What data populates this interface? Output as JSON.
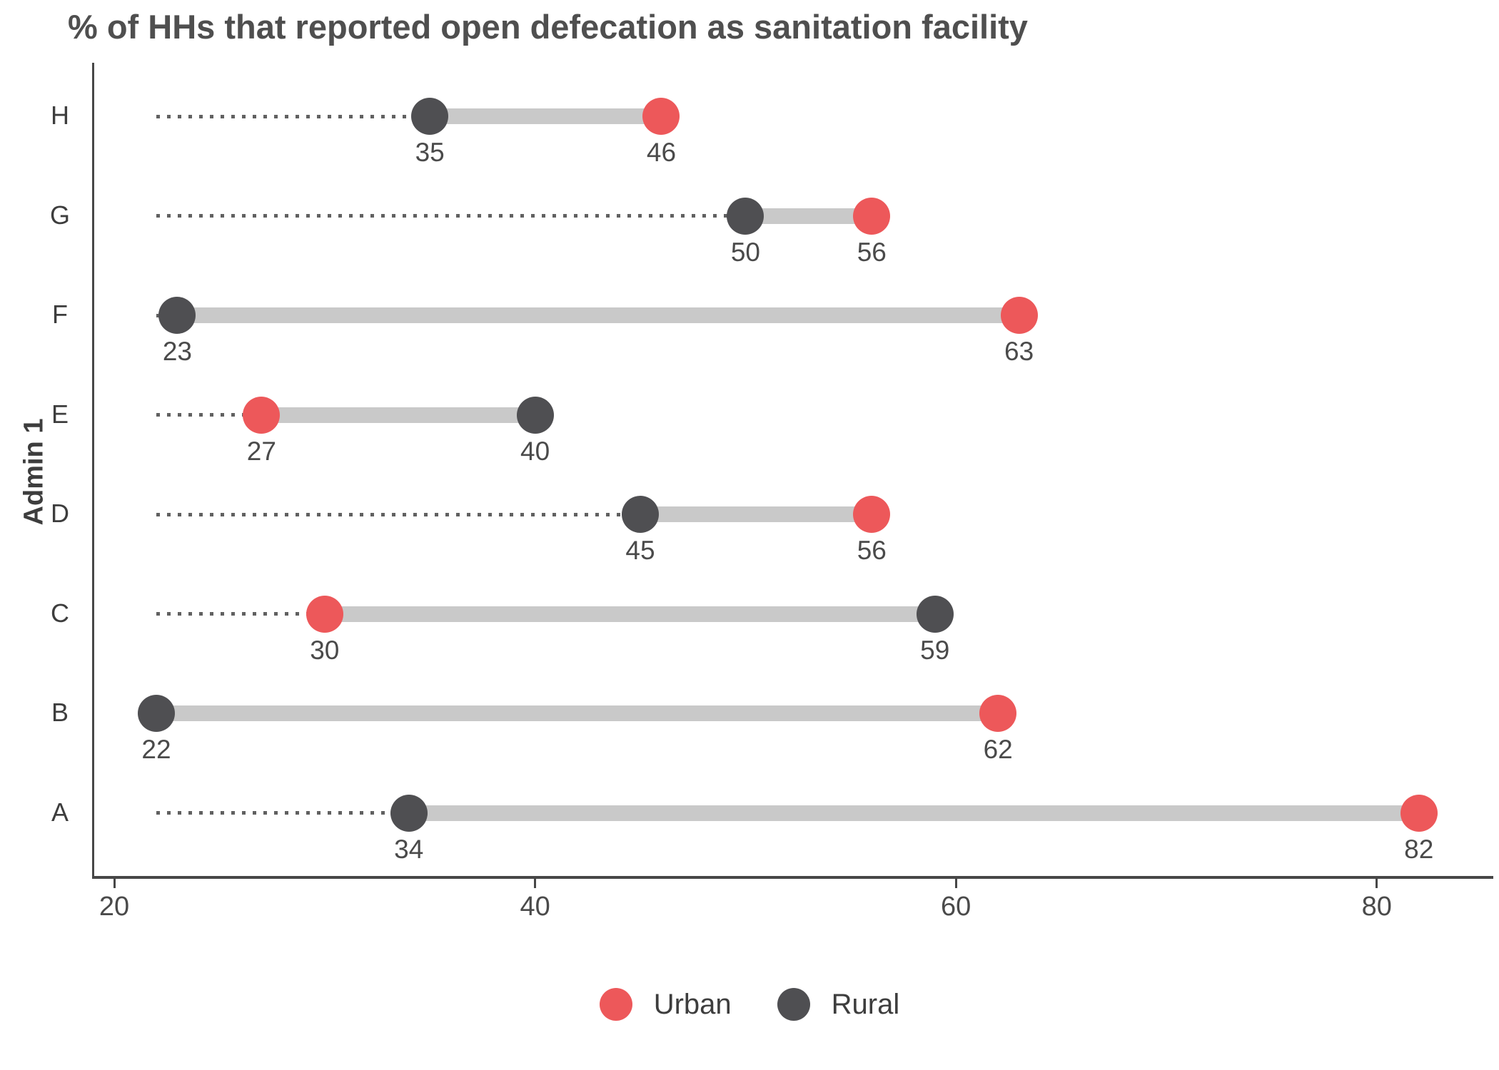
{
  "title": "% of HHs that reported open defecation as sanitation facility",
  "y_axis_label": "Admin 1",
  "legend": {
    "items": [
      {
        "label": "Urban",
        "color": "#ed585a"
      },
      {
        "label": "Rural",
        "color": "#4f4f52"
      }
    ]
  },
  "chart_data": {
    "type": "dumbbell",
    "orientation": "horizontal",
    "title": "% of HHs that reported open defecation as sanitation facility",
    "xlabel": "",
    "ylabel": "Admin 1",
    "categories_top_to_bottom": [
      "H",
      "G",
      "F",
      "E",
      "D",
      "C",
      "B",
      "A"
    ],
    "series": [
      {
        "name": "Urban",
        "color": "#ed585a",
        "values": [
          46,
          56,
          63,
          27,
          56,
          30,
          62,
          82
        ]
      },
      {
        "name": "Rural",
        "color": "#4f4f52",
        "values": [
          35,
          50,
          23,
          40,
          45,
          59,
          22,
          34
        ]
      }
    ],
    "x_ticks": [
      20,
      40,
      60,
      80
    ],
    "xlim": [
      19,
      85.5
    ],
    "grid": false,
    "legend_position": "bottom",
    "connector_color": "#c9c9c9",
    "leader_line_color": "#616161",
    "leader_line_style": "dotted",
    "leader_line_start_value": 22,
    "value_labels_shown": true
  }
}
